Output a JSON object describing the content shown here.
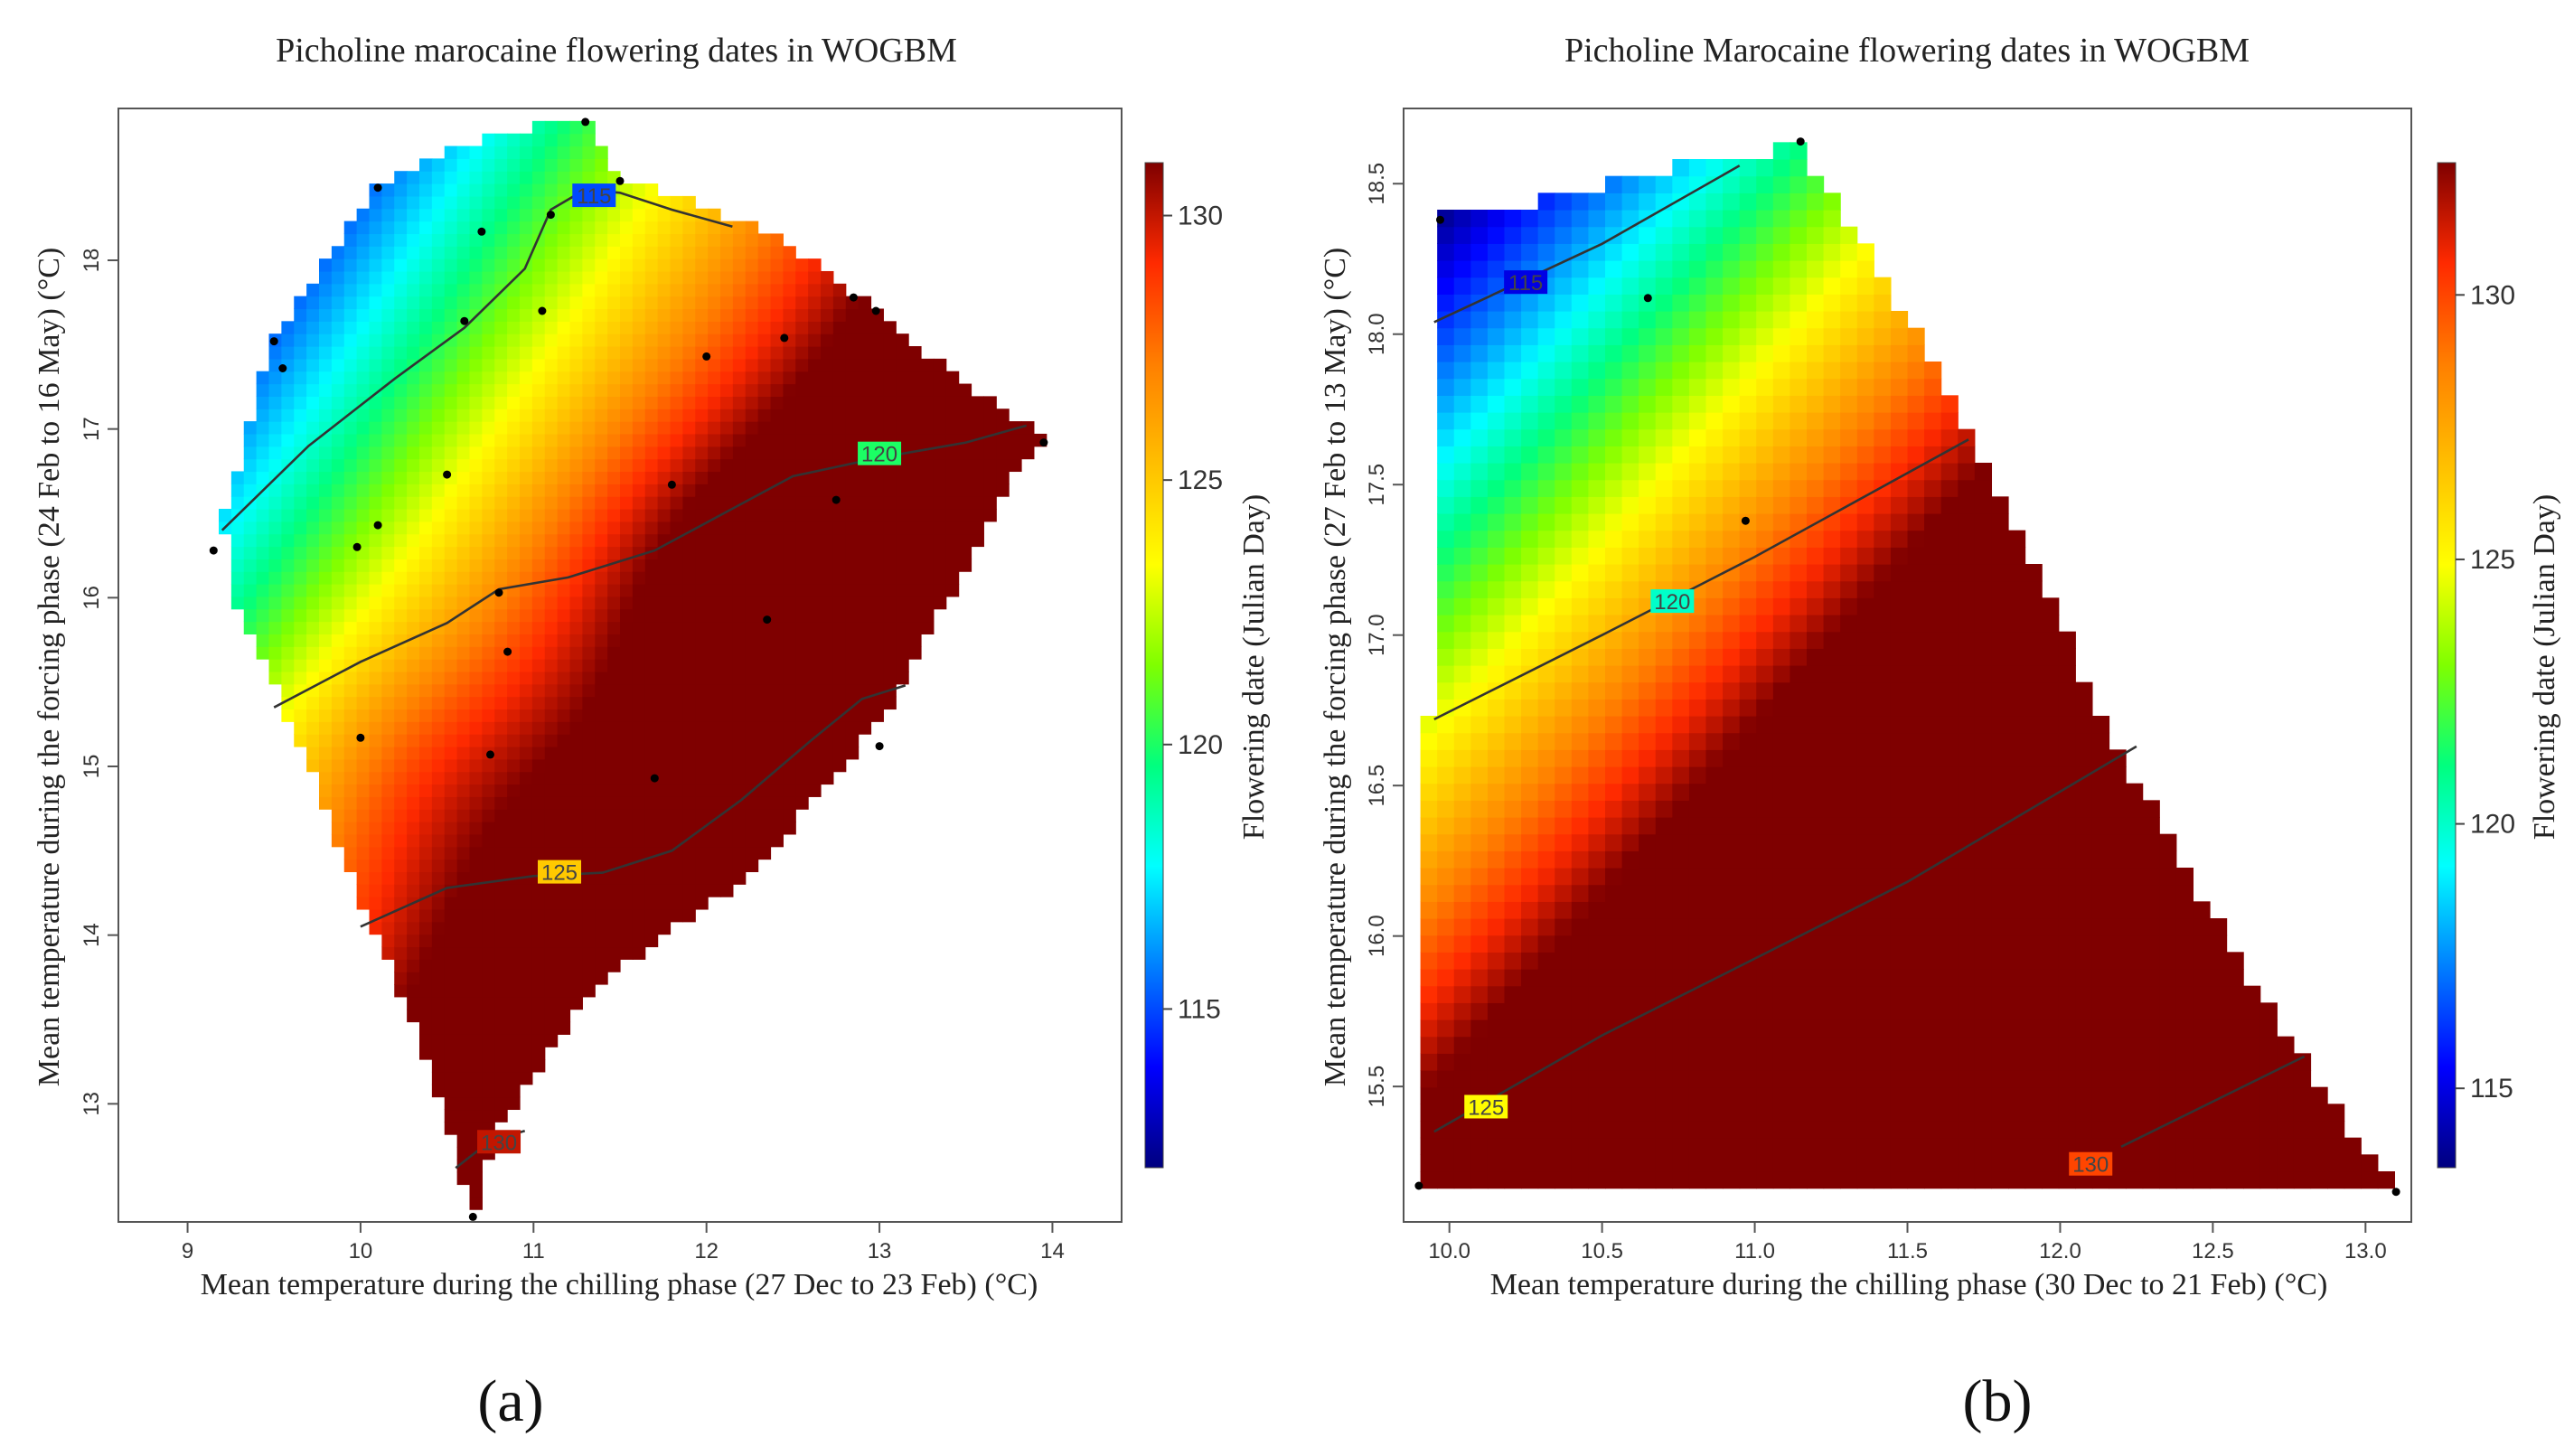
{
  "panels": [
    {
      "label": "(a)",
      "colorbar_label": "Flowering date (Julian Day)",
      "chart_data": {
        "type": "heatmap",
        "title": "Picholine marocaine flowering dates in WOGBM",
        "xlabel": "Mean temperature during the chilling phase (27 Dec to 23 Feb) (°C)",
        "ylabel": "Mean temperature during the forcing phase (24 Feb to 16 May) (°C)",
        "xlim": [
          8.6,
          14.4
        ],
        "ylim": [
          12.3,
          18.9
        ],
        "x_ticks": [
          9,
          10,
          11,
          12,
          13,
          14
        ],
        "y_ticks": [
          13,
          14,
          15,
          16,
          17,
          18
        ],
        "colorbar_range": [
          112,
          131
        ],
        "colorbar_ticks": [
          115,
          120,
          125,
          130
        ],
        "hull": [
          [
            9.2,
            16.45
          ],
          [
            9.5,
            17.55
          ],
          [
            10.1,
            18.45
          ],
          [
            10.6,
            18.7
          ],
          [
            11.3,
            18.85
          ],
          [
            11.5,
            18.5
          ],
          [
            12.4,
            18.15
          ],
          [
            13.0,
            17.7
          ],
          [
            13.5,
            17.25
          ],
          [
            13.95,
            16.95
          ],
          [
            13.7,
            16.6
          ],
          [
            13.1,
            15.4
          ],
          [
            12.3,
            14.4
          ],
          [
            11.3,
            13.65
          ],
          [
            10.8,
            12.85
          ],
          [
            10.65,
            12.35
          ],
          [
            10.55,
            12.7
          ],
          [
            10.3,
            13.5
          ],
          [
            10.0,
            14.2
          ],
          [
            9.7,
            15.0
          ],
          [
            9.5,
            15.5
          ],
          [
            9.3,
            15.9
          ]
        ],
        "contours": [
          {
            "level": 115,
            "label": "115",
            "points": [
              [
                9.2,
                16.4
              ],
              [
                9.7,
                16.9
              ],
              [
                10.2,
                17.3
              ],
              [
                10.6,
                17.6
              ],
              [
                10.95,
                17.95
              ],
              [
                11.1,
                18.3
              ],
              [
                11.3,
                18.42
              ],
              [
                11.5,
                18.4
              ],
              [
                11.8,
                18.3
              ],
              [
                12.15,
                18.2
              ]
            ],
            "label_at": [
              11.35,
              18.38
            ]
          },
          {
            "level": 120,
            "label": "120",
            "points": [
              [
                9.5,
                15.35
              ],
              [
                10.0,
                15.62
              ],
              [
                10.5,
                15.85
              ],
              [
                10.8,
                16.05
              ],
              [
                11.2,
                16.12
              ],
              [
                11.7,
                16.28
              ],
              [
                12.1,
                16.5
              ],
              [
                12.5,
                16.72
              ],
              [
                13.0,
                16.83
              ],
              [
                13.5,
                16.92
              ],
              [
                13.85,
                17.02
              ]
            ],
            "label_at": [
              13.0,
              16.85
            ]
          },
          {
            "level": 125,
            "label": "125",
            "points": [
              [
                10.0,
                14.05
              ],
              [
                10.5,
                14.28
              ],
              [
                11.0,
                14.35
              ],
              [
                11.4,
                14.37
              ],
              [
                11.8,
                14.5
              ],
              [
                12.2,
                14.8
              ],
              [
                12.6,
                15.15
              ],
              [
                12.9,
                15.4
              ],
              [
                13.15,
                15.48
              ]
            ],
            "label_at": [
              11.15,
              14.37
            ]
          },
          {
            "level": 130,
            "label": "130",
            "points": [
              [
                10.55,
                12.62
              ],
              [
                10.75,
                12.78
              ],
              [
                10.95,
                12.84
              ]
            ],
            "label_at": [
              10.8,
              12.77
            ]
          }
        ],
        "points": [
          [
            11.3,
            18.82
          ],
          [
            10.1,
            18.43
          ],
          [
            11.5,
            18.47
          ],
          [
            10.7,
            18.17
          ],
          [
            11.1,
            18.27
          ],
          [
            9.5,
            17.52
          ],
          [
            9.55,
            17.36
          ],
          [
            10.6,
            17.64
          ],
          [
            11.05,
            17.7
          ],
          [
            12.0,
            17.43
          ],
          [
            12.45,
            17.54
          ],
          [
            12.85,
            17.78
          ],
          [
            12.98,
            17.7
          ],
          [
            13.95,
            16.92
          ],
          [
            9.15,
            16.28
          ],
          [
            10.5,
            16.73
          ],
          [
            10.1,
            16.43
          ],
          [
            9.98,
            16.3
          ],
          [
            11.8,
            16.67
          ],
          [
            12.75,
            16.58
          ],
          [
            10.8,
            16.03
          ],
          [
            10.85,
            15.68
          ],
          [
            12.35,
            15.87
          ],
          [
            10.0,
            15.17
          ],
          [
            10.75,
            15.07
          ],
          [
            11.7,
            14.93
          ],
          [
            13.0,
            15.12
          ],
          [
            10.65,
            12.33
          ]
        ],
        "surface": {
          "base": 103.2,
          "x_coef": 4.8,
          "y_coef": -3.0,
          "min": 112.5,
          "max": 131.5,
          "bumps": [
            {
              "x": 10.2,
              "y": 15.0,
              "sx": 0.9,
              "sy": 0.9,
              "amp": 1.5
            },
            {
              "x": 12.3,
              "y": 14.8,
              "sx": 0.8,
              "sy": 0.7,
              "amp": -1.6
            },
            {
              "x": 12.0,
              "y": 16.3,
              "sx": 1.2,
              "sy": 0.8,
              "amp": 1.2
            }
          ]
        }
      }
    },
    {
      "label": "(b)",
      "colorbar_label": "Flowering date (Julian Day)",
      "chart_data": {
        "type": "heatmap",
        "title": "Picholine Marocaine flowering dates in WOGBM",
        "xlabel": "Mean temperature during the chilling phase (30 Dec to 21 Feb) (°C)",
        "ylabel": "Mean temperature during the forcing phase (27 Feb to 13 May) (°C)",
        "xlim": [
          9.85,
          13.15
        ],
        "ylim": [
          15.05,
          18.75
        ],
        "x_ticks": [
          10.0,
          10.5,
          11.0,
          11.5,
          12.0,
          12.5,
          13.0
        ],
        "y_ticks": [
          15.5,
          16.0,
          16.5,
          17.0,
          17.5,
          18.0,
          18.5
        ],
        "colorbar_range": [
          113.5,
          132.5
        ],
        "colorbar_ticks": [
          115,
          120,
          125,
          130
        ],
        "hull": [
          [
            9.9,
            15.15
          ],
          [
            9.9,
            16.68
          ],
          [
            9.95,
            16.75
          ],
          [
            9.95,
            18.4
          ],
          [
            10.15,
            18.4
          ],
          [
            10.6,
            18.52
          ],
          [
            10.95,
            18.6
          ],
          [
            11.15,
            18.62
          ],
          [
            11.25,
            18.47
          ],
          [
            11.7,
            17.7
          ],
          [
            12.2,
            16.6
          ],
          [
            12.6,
            15.9
          ],
          [
            12.85,
            15.5
          ],
          [
            13.1,
            15.15
          ]
        ],
        "contours": [
          {
            "level": 115,
            "label": "115",
            "points": [
              [
                9.95,
                18.04
              ],
              [
                10.5,
                18.3
              ],
              [
                10.95,
                18.56
              ]
            ],
            "label_at": [
              10.25,
              18.17
            ]
          },
          {
            "level": 120,
            "label": "120",
            "points": [
              [
                9.95,
                16.72
              ],
              [
                10.5,
                17.0
              ],
              [
                11.0,
                17.26
              ],
              [
                11.7,
                17.65
              ]
            ],
            "label_at": [
              10.73,
              17.11
            ]
          },
          {
            "level": 125,
            "label": "125",
            "points": [
              [
                9.95,
                15.35
              ],
              [
                10.5,
                15.67
              ],
              [
                11.5,
                16.18
              ],
              [
                12.25,
                16.63
              ]
            ],
            "label_at": [
              10.12,
              15.43
            ]
          },
          {
            "level": 130,
            "label": "130",
            "points": [
              [
                12.2,
                15.3
              ],
              [
                12.8,
                15.6
              ]
            ],
            "label_at": [
              12.1,
              15.24
            ]
          }
        ],
        "points": [
          [
            11.15,
            18.64
          ],
          [
            9.97,
            18.38
          ],
          [
            10.65,
            18.12
          ],
          [
            10.97,
            17.38
          ],
          [
            9.9,
            15.17
          ],
          [
            13.1,
            15.15
          ]
        ],
        "surface": {
          "base": 116.2,
          "x_coef": 3.4,
          "y_coef": -7.0,
          "offset_x": 9.95,
          "offset_y": 18.0,
          "min": 113.5,
          "max": 132.5,
          "bumps": []
        }
      }
    }
  ],
  "colormap": [
    "#00007f",
    "#0000ff",
    "#007fff",
    "#00ffff",
    "#00ff7f",
    "#7fff00",
    "#ffff00",
    "#ffbf00",
    "#ff7f00",
    "#ff2a00",
    "#7f0000"
  ]
}
